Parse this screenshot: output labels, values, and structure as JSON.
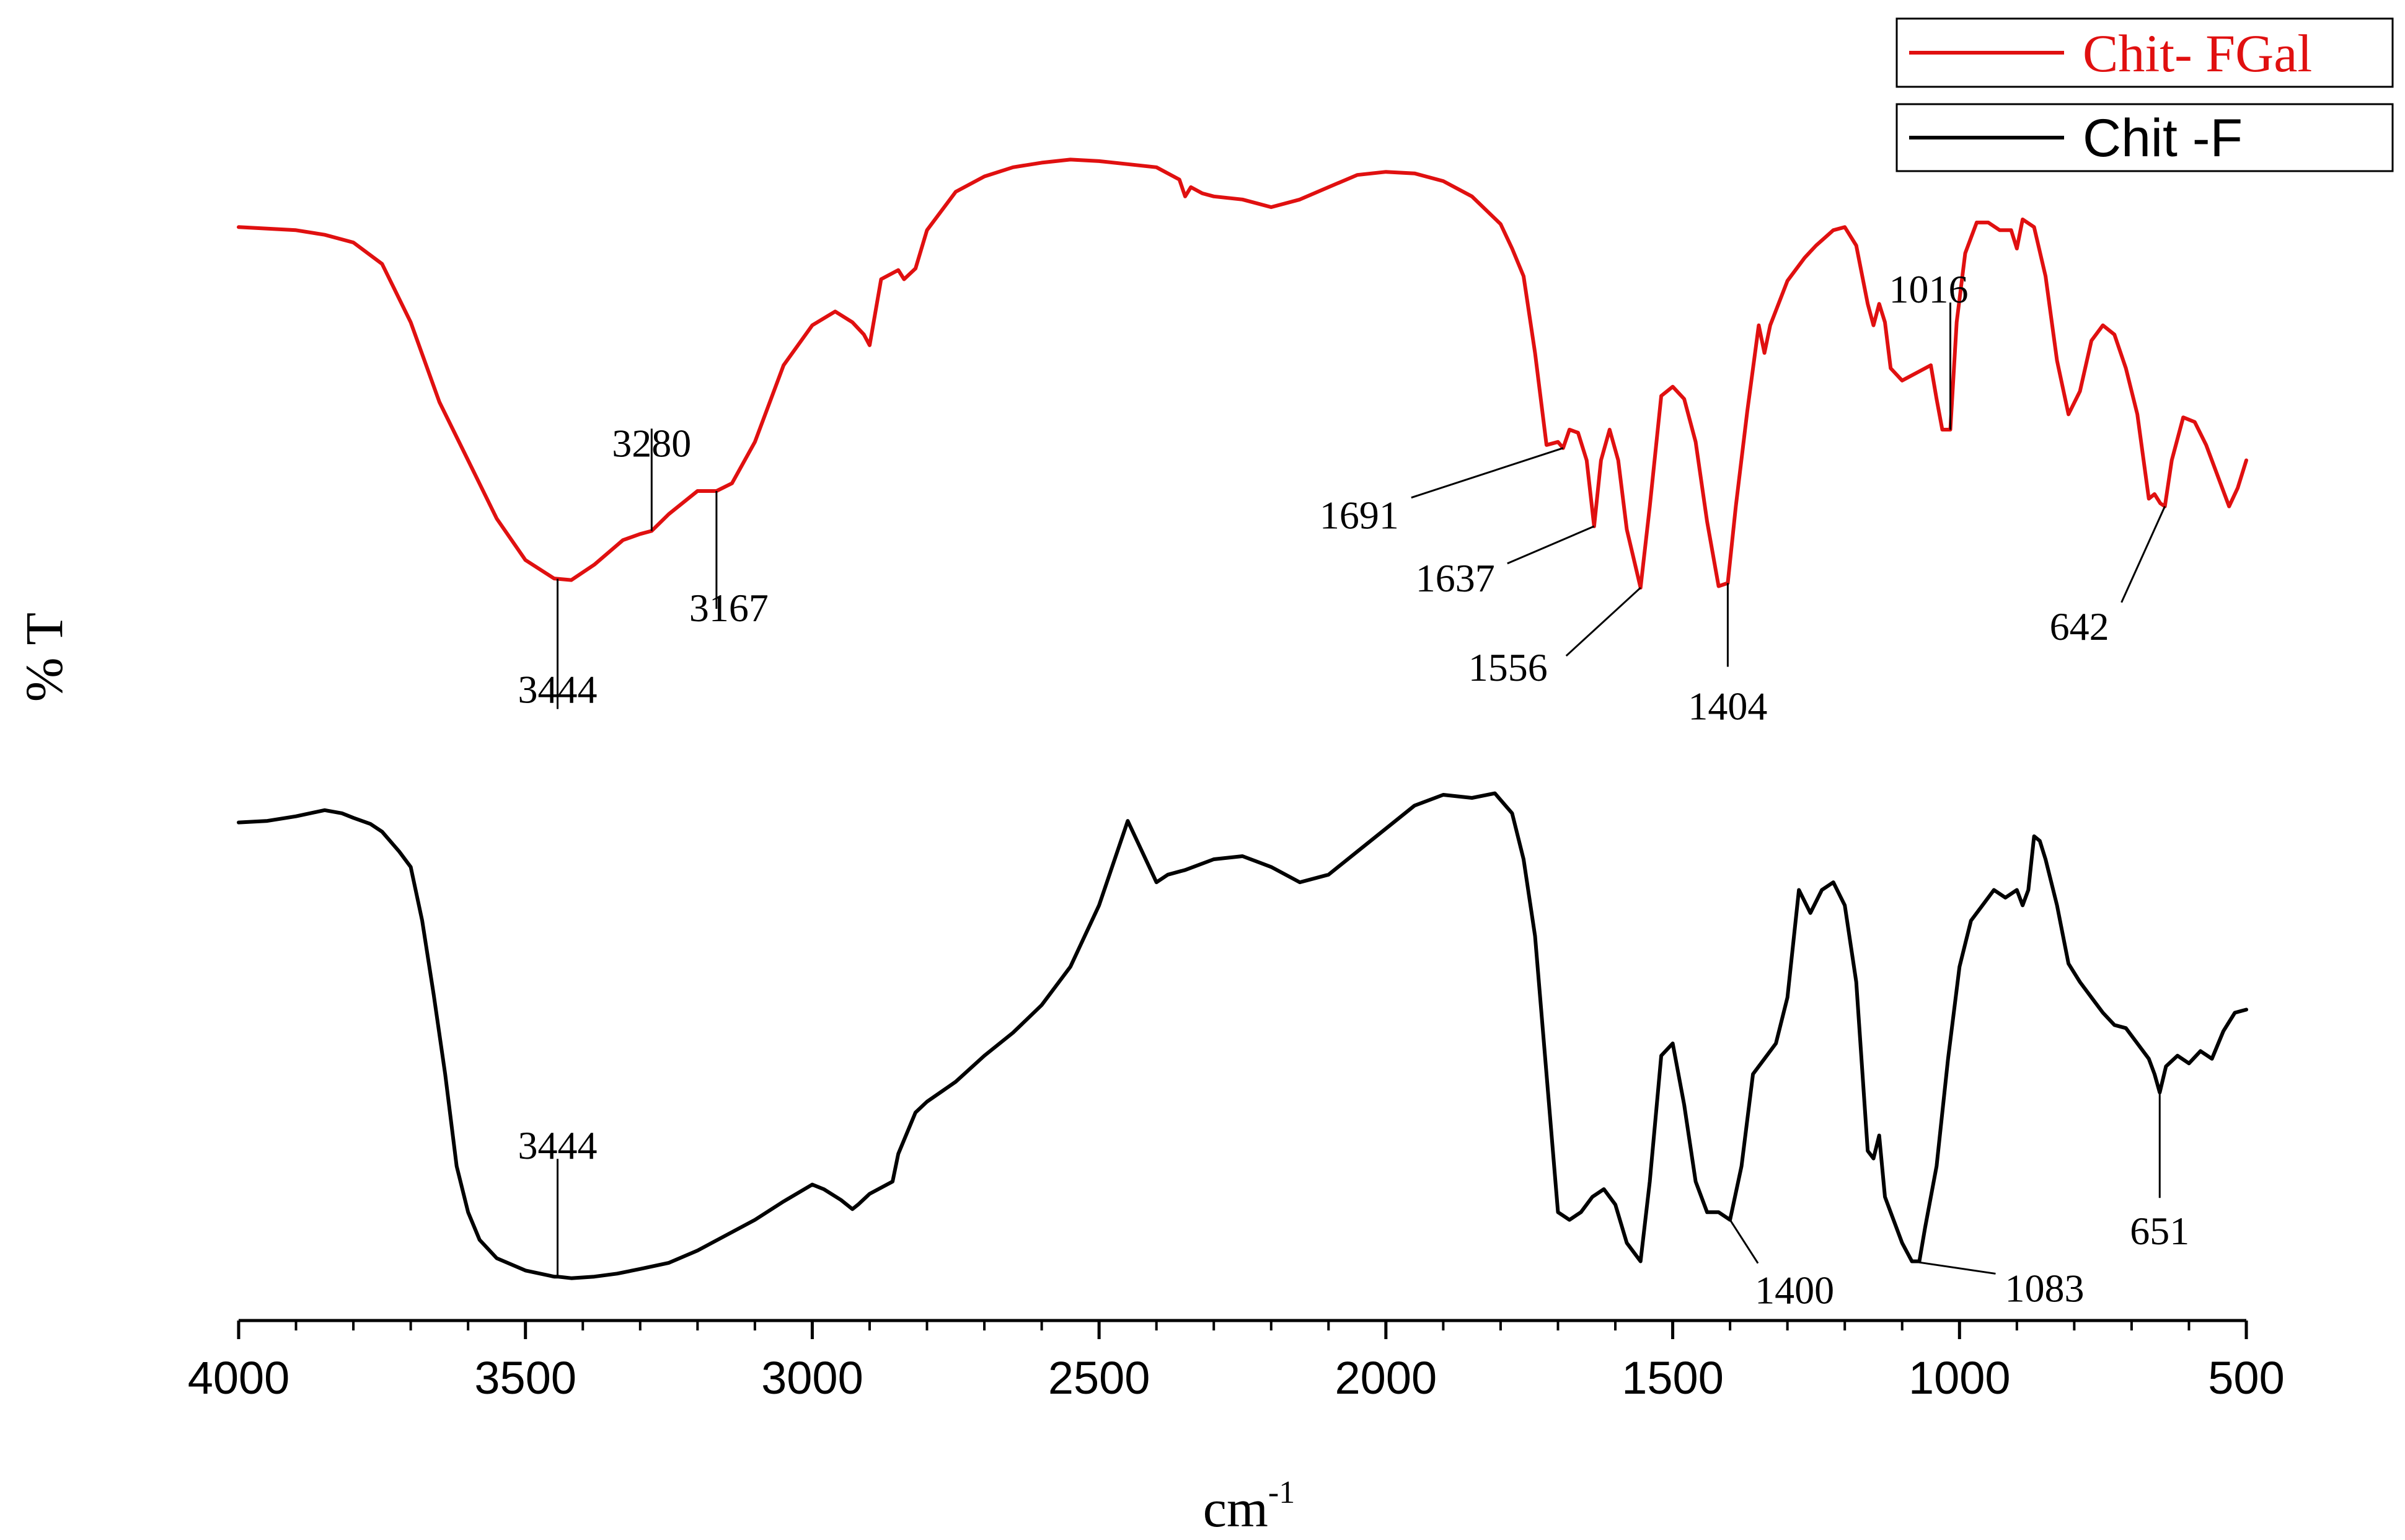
{
  "chart_data": {
    "type": "line",
    "xlabel": "cm",
    "xlabel_superscript": "-1",
    "ylabel": "% T",
    "xlim": [
      4000,
      500
    ],
    "x_ticks": [
      4000,
      3500,
      3000,
      2500,
      2000,
      1500,
      1000,
      500
    ],
    "y_ticks_shown": false,
    "grid": false,
    "legend_position": "top-right",
    "series": [
      {
        "name": "Chit- FGal",
        "color": "#e01010",
        "x": [
          4000,
          3950,
          3900,
          3850,
          3800,
          3750,
          3700,
          3650,
          3600,
          3550,
          3500,
          3450,
          3420,
          3380,
          3330,
          3300,
          3280,
          3250,
          3200,
          3167,
          3140,
          3100,
          3050,
          3000,
          2960,
          2930,
          2910,
          2900,
          2880,
          2850,
          2840,
          2820,
          2800,
          2750,
          2700,
          2650,
          2600,
          2550,
          2500,
          2450,
          2400,
          2360,
          2350,
          2340,
          2320,
          2300,
          2250,
          2200,
          2150,
          2100,
          2050,
          2000,
          1950,
          1900,
          1850,
          1800,
          1780,
          1760,
          1740,
          1720,
          1700,
          1691,
          1680,
          1665,
          1650,
          1637,
          1625,
          1610,
          1595,
          1580,
          1556,
          1540,
          1520,
          1500,
          1480,
          1460,
          1440,
          1420,
          1404,
          1390,
          1370,
          1350,
          1340,
          1330,
          1300,
          1270,
          1250,
          1220,
          1200,
          1180,
          1160,
          1150,
          1140,
          1130,
          1120,
          1100,
          1070,
          1050,
          1040,
          1030,
          1016,
          1005,
          990,
          970,
          950,
          930,
          910,
          900,
          890,
          870,
          850,
          830,
          810,
          790,
          770,
          750,
          730,
          710,
          690,
          670,
          660,
          650,
          642,
          630,
          610,
          590,
          570,
          550,
          530,
          515,
          500
        ],
        "y": [
          148,
          149,
          150,
          153,
          158,
          172,
          210,
          262,
          300,
          338,
          365,
          377,
          378,
          368,
          352,
          348,
          346,
          335,
          320,
          320,
          315,
          288,
          238,
          212,
          203,
          210,
          218,
          225,
          182,
          176,
          182,
          175,
          150,
          125,
          115,
          109,
          106,
          104,
          105,
          107,
          109,
          117,
          128,
          122,
          126,
          128,
          130,
          135,
          130,
          122,
          114,
          112,
          113,
          118,
          128,
          146,
          162,
          180,
          230,
          290,
          288,
          292,
          280,
          282,
          300,
          343,
          300,
          280,
          300,
          345,
          383,
          330,
          258,
          252,
          260,
          288,
          340,
          382,
          380,
          330,
          268,
          212,
          230,
          212,
          183,
          168,
          160,
          150,
          148,
          160,
          198,
          212,
          198,
          210,
          240,
          248,
          242,
          238,
          260,
          280,
          280,
          210,
          165,
          145,
          145,
          150,
          150,
          162,
          143,
          148,
          180,
          235,
          270,
          255,
          222,
          212,
          218,
          240,
          270,
          325,
          322,
          328,
          330,
          300,
          272,
          275,
          290,
          310,
          330,
          318,
          300
        ]
      },
      {
        "name": "Chit -F",
        "color": "#000000",
        "x": [
          4000,
          3950,
          3900,
          3850,
          3820,
          3800,
          3770,
          3750,
          3720,
          3700,
          3680,
          3660,
          3640,
          3620,
          3600,
          3580,
          3550,
          3500,
          3450,
          3444,
          3420,
          3380,
          3340,
          3300,
          3250,
          3200,
          3150,
          3100,
          3050,
          3000,
          2980,
          2950,
          2930,
          2920,
          2900,
          2860,
          2850,
          2820,
          2800,
          2750,
          2700,
          2650,
          2600,
          2550,
          2500,
          2450,
          2400,
          2380,
          2350,
          2300,
          2250,
          2200,
          2150,
          2100,
          2050,
          2000,
          1950,
          1900,
          1850,
          1810,
          1780,
          1760,
          1740,
          1720,
          1700,
          1680,
          1660,
          1640,
          1620,
          1600,
          1580,
          1556,
          1540,
          1520,
          1500,
          1480,
          1460,
          1440,
          1420,
          1400,
          1380,
          1360,
          1340,
          1320,
          1300,
          1280,
          1260,
          1240,
          1220,
          1200,
          1180,
          1160,
          1150,
          1140,
          1130,
          1120,
          1100,
          1083,
          1070,
          1060,
          1040,
          1020,
          1000,
          980,
          960,
          940,
          920,
          900,
          890,
          880,
          870,
          860,
          850,
          830,
          810,
          790,
          770,
          750,
          730,
          710,
          690,
          670,
          660,
          651,
          640,
          620,
          600,
          580,
          560,
          540,
          520,
          500
        ],
        "y": [
          536,
          535,
          532,
          528,
          530,
          533,
          537,
          542,
          555,
          565,
          600,
          648,
          700,
          760,
          790,
          808,
          820,
          828,
          832,
          832,
          833,
          832,
          830,
          827,
          823,
          815,
          805,
          795,
          783,
          772,
          775,
          782,
          788,
          785,
          778,
          770,
          752,
          725,
          718,
          705,
          688,
          673,
          655,
          630,
          590,
          535,
          575,
          570,
          567,
          560,
          558,
          565,
          575,
          570,
          555,
          540,
          525,
          518,
          520,
          517,
          530,
          560,
          610,
          700,
          790,
          795,
          790,
          780,
          775,
          785,
          810,
          822,
          770,
          688,
          680,
          720,
          770,
          790,
          790,
          795,
          760,
          700,
          690,
          680,
          650,
          580,
          595,
          580,
          575,
          590,
          640,
          750,
          755,
          740,
          780,
          790,
          810,
          822,
          822,
          800,
          760,
          690,
          630,
          600,
          590,
          580,
          585,
          580,
          590,
          580,
          545,
          548,
          560,
          590,
          628,
          640,
          650,
          660,
          668,
          670,
          680,
          690,
          700,
          712,
          695,
          688,
          693,
          685,
          690,
          672,
          660,
          658
        ]
      }
    ],
    "annotations": [
      {
        "series": "Chit- FGal",
        "label": "3444",
        "x": 3444
      },
      {
        "series": "Chit- FGal",
        "label": "3280",
        "x": 3280
      },
      {
        "series": "Chit- FGal",
        "label": "3167",
        "x": 3167
      },
      {
        "series": "Chit- FGal",
        "label": "1691",
        "x": 1691
      },
      {
        "series": "Chit- FGal",
        "label": "1637",
        "x": 1637
      },
      {
        "series": "Chit- FGal",
        "label": "1556",
        "x": 1556
      },
      {
        "series": "Chit- FGal",
        "label": "1404",
        "x": 1404
      },
      {
        "series": "Chit- FGal",
        "label": "1016",
        "x": 1016
      },
      {
        "series": "Chit- FGal",
        "label": "642",
        "x": 642
      },
      {
        "series": "Chit -F",
        "label": "3444",
        "x": 3444
      },
      {
        "series": "Chit -F",
        "label": "1400",
        "x": 1400
      },
      {
        "series": "Chit -F",
        "label": "1083",
        "x": 1083
      },
      {
        "series": "Chit -F",
        "label": "651",
        "x": 651
      }
    ]
  }
}
